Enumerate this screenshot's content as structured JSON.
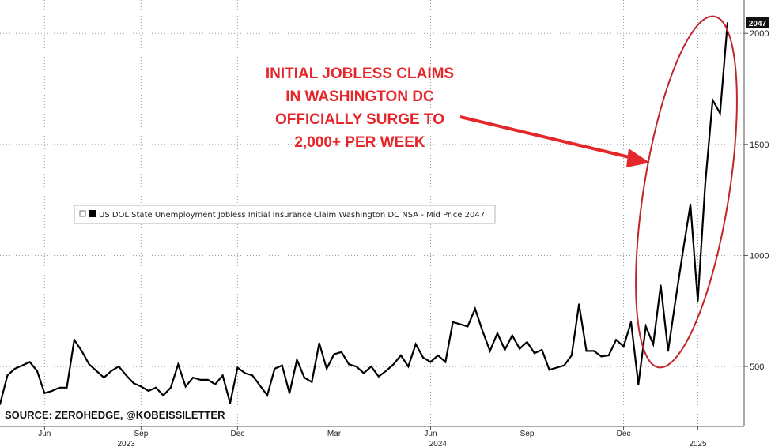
{
  "colors": {
    "series": "#000000",
    "annotation": "#e5262a",
    "grid": "#9a9a9a",
    "last_value_box": "#111111"
  },
  "annotation": {
    "lines": [
      "INITIAL JOBLESS CLAIMS",
      "IN WASHINGTON DC",
      "OFFICIALLY SURGE TO",
      "2,000+ PER WEEK"
    ]
  },
  "legend": {
    "label": "US DOL State Unemployment Jobless Initial Insurance Claim Washington DC NSA - Mid Price 2047"
  },
  "source": "SOURCE: ZEROHEDGE, @KOBEISSILETTER",
  "last_value_label": "2047",
  "chart_data": {
    "type": "line",
    "title": "",
    "xlabel": "",
    "ylabel": "",
    "ylim": [
      230,
      2150
    ],
    "yticks": [
      "500",
      "1000",
      "1500",
      "2000"
    ],
    "ytick_values": [
      500,
      1000,
      1500,
      2000
    ],
    "xticks": [
      {
        "label": "Jun",
        "week": 6
      },
      {
        "label": "Sep",
        "week": 19
      },
      {
        "label": "Dec",
        "week": 32
      },
      {
        "label": "Mar",
        "week": 45
      },
      {
        "label": "Jun",
        "week": 58
      },
      {
        "label": "Sep",
        "week": 71
      },
      {
        "label": "Dec",
        "week": 84
      },
      {
        "label": "2025",
        "week": 94
      }
    ],
    "year_labels": [
      {
        "label": "2023",
        "week": 17
      },
      {
        "label": "2024",
        "week": 59
      },
      {
        "label": "2025",
        "week": 94
      }
    ],
    "grid": true,
    "legend_position": "center-left",
    "series": [
      {
        "name": "US DOL State Unemployment Jobless Initial Insurance Claim Washington DC NSA - Mid Price 2047",
        "values": [
          330,
          460,
          490,
          505,
          520,
          480,
          380,
          390,
          405,
          405,
          620,
          570,
          510,
          480,
          450,
          480,
          500,
          460,
          425,
          410,
          390,
          405,
          370,
          405,
          510,
          410,
          450,
          440,
          440,
          420,
          460,
          335,
          495,
          470,
          460,
          415,
          370,
          490,
          505,
          380,
          530,
          450,
          430,
          605,
          490,
          555,
          565,
          510,
          500,
          470,
          500,
          455,
          480,
          510,
          550,
          500,
          600,
          540,
          520,
          550,
          520,
          700,
          690,
          680,
          760,
          660,
          570,
          650,
          575,
          640,
          580,
          610,
          560,
          575,
          485,
          495,
          505,
          550,
          780,
          570,
          570,
          545,
          550,
          620,
          590,
          700,
          420,
          680,
          600,
          865,
          570,
          800,
          1020,
          1230,
          795,
          1320,
          1700,
          1640,
          2047
        ]
      }
    ]
  }
}
